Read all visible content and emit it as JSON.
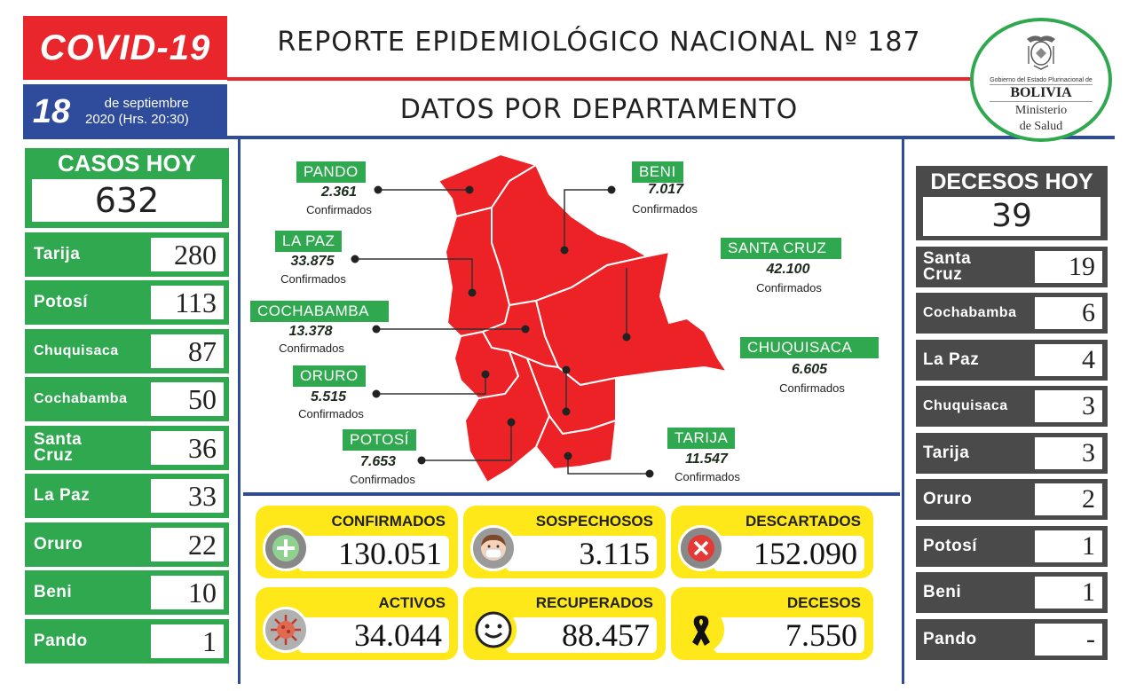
{
  "header": {
    "badge": "COVID-19",
    "day": "18",
    "date_line1": "de septiembre",
    "date_line2": "2020 (Hrs. 20:30)",
    "title": "REPORTE EPIDEMIOLÓGICO NACIONAL Nº 187",
    "subtitle": "DATOS POR DEPARTAMENTO"
  },
  "logo": {
    "gov_text": "Gobierno del Estado Plurinacional de",
    "country": "BOLIVIA",
    "ministry_line1": "Ministerio",
    "ministry_line2": "de Salud"
  },
  "cases_today": {
    "title": "CASOS HOY",
    "total": "632",
    "departments": [
      {
        "name": "Tarija",
        "value": "280"
      },
      {
        "name": "Potosí",
        "value": "113"
      },
      {
        "name": "Chuquisaca",
        "value": "87"
      },
      {
        "name": "Cochabamba",
        "value": "50"
      },
      {
        "name": "Santa Cruz",
        "value": "36"
      },
      {
        "name": "La Paz",
        "value": "33"
      },
      {
        "name": "Oruro",
        "value": "22"
      },
      {
        "name": "Beni",
        "value": "10"
      },
      {
        "name": "Pando",
        "value": "1"
      }
    ]
  },
  "deaths_today": {
    "title": "DECESOS HOY",
    "total": "39",
    "departments": [
      {
        "name": "Santa Cruz",
        "value": "19"
      },
      {
        "name": "Cochabamba",
        "value": "6"
      },
      {
        "name": "La Paz",
        "value": "4"
      },
      {
        "name": "Chuquisaca",
        "value": "3"
      },
      {
        "name": "Tarija",
        "value": "3"
      },
      {
        "name": "Oruro",
        "value": "2"
      },
      {
        "name": "Potosí",
        "value": "1"
      },
      {
        "name": "Beni",
        "value": "1"
      },
      {
        "name": "Pando",
        "value": "-"
      }
    ]
  },
  "map": {
    "confirmed_label": "Confirmados",
    "departments": {
      "pando": {
        "name": "PANDO",
        "value": "2.361"
      },
      "beni": {
        "name": "BENI",
        "value": "7.017"
      },
      "lapaz": {
        "name": "LA PAZ",
        "value": "33.875"
      },
      "santacruz": {
        "name": "SANTA CRUZ",
        "value": "42.100"
      },
      "cochabamba": {
        "name": "COCHABAMBA",
        "value": "13.378"
      },
      "chuquisaca": {
        "name": "CHUQUISACA",
        "value": "6.605"
      },
      "oruro": {
        "name": "ORURO",
        "value": "5.515"
      },
      "potosi": {
        "name": "POTOSÍ",
        "value": "7.653"
      },
      "tarija": {
        "name": "TARIJA",
        "value": "11.547"
      }
    },
    "colors": {
      "map_fill": "#ec2227",
      "border": "#ffffff",
      "tag": "#2fa84f"
    }
  },
  "stats": {
    "confirmed": {
      "label": "CONFIRMADOS",
      "value": "130.051",
      "icon": "plus-icon"
    },
    "suspected": {
      "label": "SOSPECHOSOS",
      "value": "3.115",
      "icon": "masked-face-icon"
    },
    "discarded": {
      "label": "DESCARTADOS",
      "value": "152.090",
      "icon": "x-circle-icon"
    },
    "active": {
      "label": "ACTIVOS",
      "value": "34.044",
      "icon": "virus-icon"
    },
    "recovered": {
      "label": "RECUPERADOS",
      "value": "88.457",
      "icon": "smiley-icon"
    },
    "deaths": {
      "label": "DECESOS",
      "value": "7.550",
      "icon": "mourning-ribbon-icon"
    }
  },
  "colors": {
    "red": "#e8262b",
    "blue": "#2e4b9c",
    "green": "#2fa84f",
    "gray": "#4a4a4a",
    "yellow": "#ffe81a"
  }
}
